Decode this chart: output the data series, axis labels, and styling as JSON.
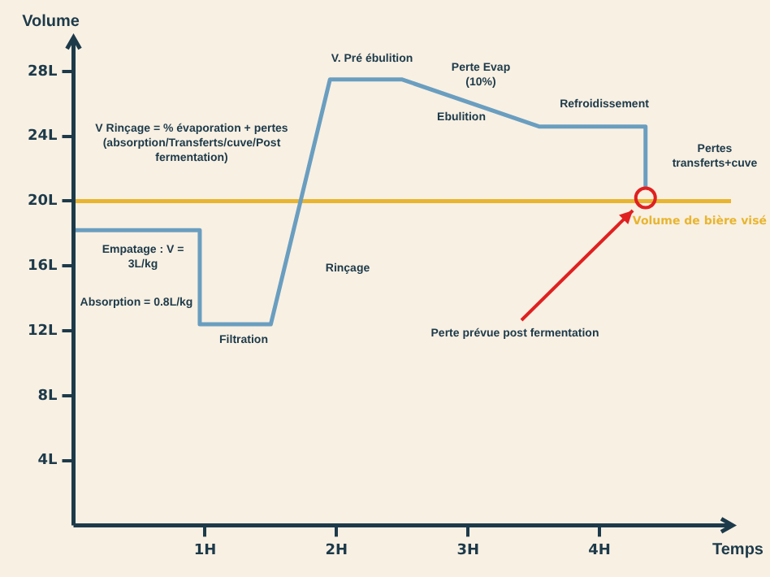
{
  "chart_data": {
    "type": "line",
    "xlabel": "Temps",
    "ylabel": "Volume",
    "x": [
      0,
      0.96,
      0.96,
      1.5,
      1.95,
      2.5,
      3.54,
      4.35,
      4.35
    ],
    "series": [
      {
        "color": "#6a9ec0",
        "values": [
          18.2,
          18.2,
          12.4,
          12.4,
          27.5,
          27.5,
          24.6,
          24.6,
          20.9
        ]
      }
    ],
    "xlim": [
      0,
      5
    ],
    "xticks": [
      {
        "value": 1,
        "label": "1H"
      },
      {
        "value": 2,
        "label": "2H"
      },
      {
        "value": 3,
        "label": "3H"
      },
      {
        "value": 4,
        "label": "4H"
      }
    ],
    "ylim": [
      0,
      30
    ],
    "yticks": [
      {
        "value": 4,
        "label": "4L"
      },
      {
        "value": 8,
        "label": "8L"
      },
      {
        "value": 12,
        "label": "12L"
      },
      {
        "value": 16,
        "label": "16L"
      },
      {
        "value": 20,
        "label": "20L"
      },
      {
        "value": 24,
        "label": "24L"
      },
      {
        "value": 28,
        "label": "28L"
      }
    ],
    "ref_lines": [
      {
        "axis": "y",
        "value": 20,
        "label": "Volume de bière visé",
        "color": "#e8b530"
      }
    ],
    "annotations": [
      "V Rinçage = % évaporation + pertes (absorption/Transferts/cuve/Post fermentation)",
      "Absorption = 0.8L/kg",
      "Empatage : V = 3L/kg",
      "Filtration",
      "Rinçage",
      "V. Pré ébulition",
      "Perte Evap (10%)",
      "Ebulition",
      "Refroidissement",
      "Pertes transferts+cuve",
      "Perte prévue post fermentation"
    ],
    "grid": false,
    "legend": false,
    "marker": "none",
    "line_style": "solid"
  }
}
